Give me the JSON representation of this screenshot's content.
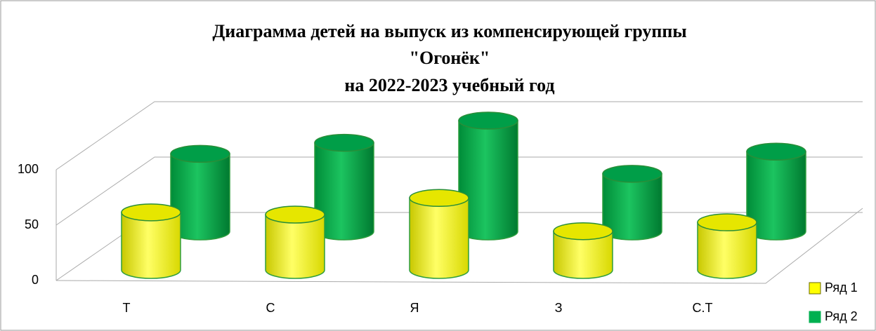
{
  "chart_data": {
    "type": "bar3d",
    "title": [
      "Диаграмма детей на выпуск из компенсирующей группы",
      "\"Огонёк\"",
      "на 2022-2023 учебный год"
    ],
    "categories": [
      "Т",
      "С",
      "Я",
      "З",
      "С.Т"
    ],
    "series": [
      {
        "name": "Ряд 1",
        "color": "#ffff00",
        "values": [
          52,
          50,
          65,
          35,
          43
        ]
      },
      {
        "name": "Ряд 2",
        "color": "#00b050",
        "values": [
          70,
          80,
          100,
          52,
          72
        ]
      }
    ],
    "ylim": [
      0,
      100
    ],
    "yticks": [
      0,
      50,
      100
    ],
    "grid": true,
    "legend": "right"
  }
}
